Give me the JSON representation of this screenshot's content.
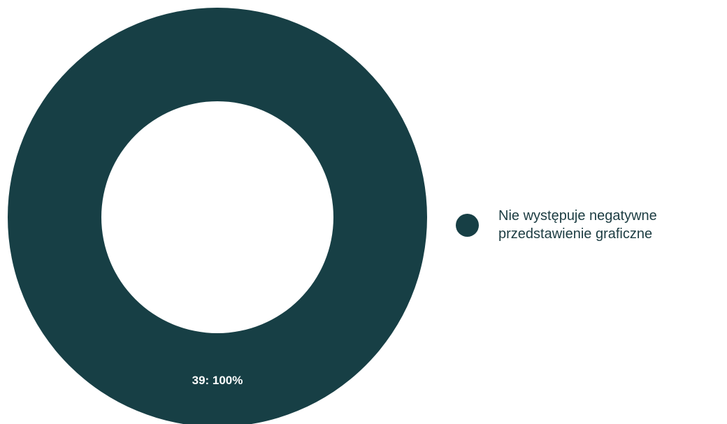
{
  "chart_data": {
    "type": "pie",
    "donut": true,
    "categories": [
      "Nie występuje negatywne przedstawienie graficzne"
    ],
    "values": [
      39
    ],
    "percentages": [
      100
    ],
    "data_labels": [
      "39: 100%"
    ],
    "colors": [
      "#173f45"
    ],
    "legend": {
      "position": "right",
      "entries": [
        "Nie występuje negatywne przedstawienie graficzne"
      ]
    }
  }
}
